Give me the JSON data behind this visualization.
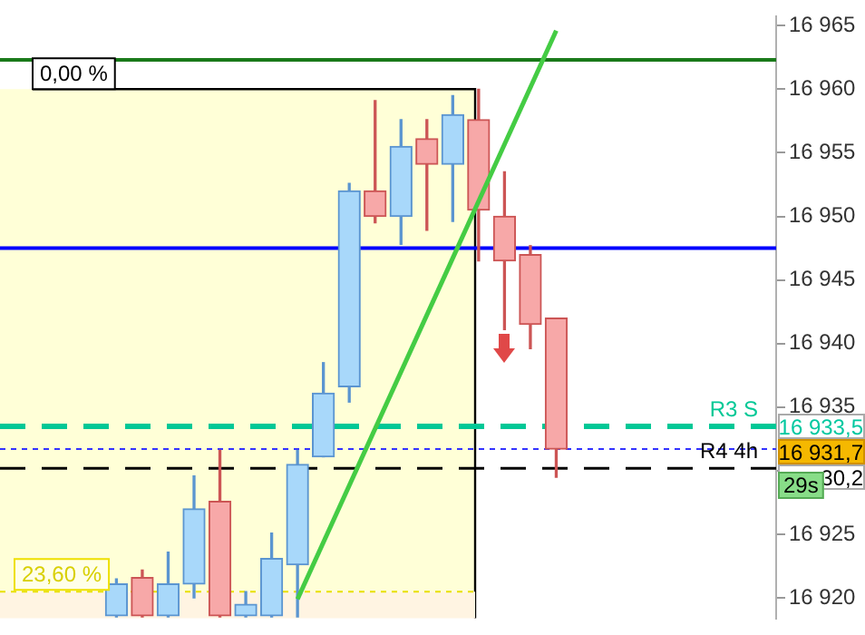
{
  "chart_data": {
    "type": "candlestick",
    "categories": [
      null,
      null,
      null,
      null,
      null,
      null,
      null,
      null,
      null,
      null,
      null,
      null,
      null,
      null,
      null,
      null,
      null,
      null,
      null,
      null,
      null,
      null,
      null,
      null,
      null,
      null,
      null,
      null,
      null,
      null
    ],
    "ohlc": [
      null,
      null,
      null,
      null,
      [
        16918.6,
        16921.5,
        16918.5,
        16921.1
      ],
      [
        16921.6,
        16922.2,
        16918.5,
        16918.6
      ],
      [
        16918.6,
        16923.6,
        16918.5,
        16921.1
      ],
      [
        16921.1,
        16929.6,
        16920,
        16927
      ],
      [
        16927.6,
        16931.6,
        16918.5,
        16918.6
      ],
      [
        16918.6,
        16920.5,
        16918.5,
        16919.5
      ],
      [
        16918.6,
        16925.1,
        16918.5,
        16923.1
      ],
      [
        16922.6,
        16931.6,
        16918.5,
        16930.5
      ],
      [
        16931.1,
        16938.5,
        16931.1,
        16936.1
      ],
      [
        16936.6,
        16952.6,
        16935.4,
        16952
      ],
      [
        16952,
        16959.1,
        16949.5,
        16950
      ],
      [
        16950,
        16957.6,
        16947.8,
        16955.5
      ],
      [
        16956.1,
        16957.6,
        16948.9,
        16954.1
      ],
      [
        16954.1,
        16959.5,
        16949.6,
        16958
      ],
      [
        16957.6,
        16960,
        16946.5,
        16950.5
      ],
      [
        16950,
        16953.5,
        16941.1,
        16946.5
      ],
      [
        16947,
        16947.7,
        16939.6,
        16941.5
      ],
      [
        16942,
        16942,
        16929.5,
        16931.7
      ],
      null,
      null,
      null,
      null,
      null,
      null,
      null,
      null
    ],
    "series": [
      {
        "type": "line",
        "values": [
          null,
          null,
          null,
          null,
          null,
          null,
          null,
          null,
          null,
          null,
          null,
          16919.9,
          null,
          null,
          null,
          null,
          null,
          null,
          null,
          null,
          null,
          16964.6,
          null,
          null,
          null,
          null,
          null,
          null,
          null,
          null
        ],
        "color": "#44cc44"
      }
    ],
    "ylim": [
      16918.4,
      16965.7
    ],
    "yticks": [
      {
        "value": 16920,
        "label": "16 920"
      },
      {
        "value": 16925,
        "label": "16 925"
      },
      {
        "value": 16930,
        "label": null
      },
      {
        "value": 16935,
        "label": "16 935"
      },
      {
        "value": 16940,
        "label": "16 940"
      },
      {
        "value": 16945,
        "label": "16 945"
      },
      {
        "value": 16950,
        "label": "16 950"
      },
      {
        "value": 16955,
        "label": "16 955"
      },
      {
        "value": 16960,
        "label": "16 960"
      },
      {
        "value": 16965,
        "label": "16 965"
      }
    ],
    "tick_labels": "y",
    "grid": false,
    "legend": false,
    "bands": [
      {
        "axis": "y",
        "from": 16920.5,
        "to": 16960,
        "label": "0,00 %",
        "color": "#ffffd7"
      },
      {
        "axis": "y",
        "from": 16918.4,
        "to": 16920.5,
        "label": "23,60 %",
        "color": "#fff4e2"
      }
    ],
    "ref_lines": [
      {
        "axis": "y",
        "value": 16962.3,
        "color": "#1a7a1a",
        "line_style": "solid"
      },
      {
        "axis": "y",
        "value": 16947.5,
        "color": "#0000ff",
        "line_style": "solid"
      },
      {
        "axis": "y",
        "value": 16933.5,
        "label": "R3 S",
        "color": "#00c896",
        "line_style": "dashed"
      },
      {
        "axis": "y",
        "value": 16931.7,
        "color": "#3333ff",
        "line_style": "dotted"
      },
      {
        "axis": "y",
        "value": 16930.2,
        "label": "R4 4h",
        "color": "#000000",
        "line_style": "dashed"
      },
      {
        "axis": "y",
        "value": 16920.5,
        "color": "#e8e000",
        "line_style": "dotted"
      }
    ],
    "annotations": [
      "16 933,5",
      "16 931,7",
      "30,2",
      "29s"
    ]
  }
}
